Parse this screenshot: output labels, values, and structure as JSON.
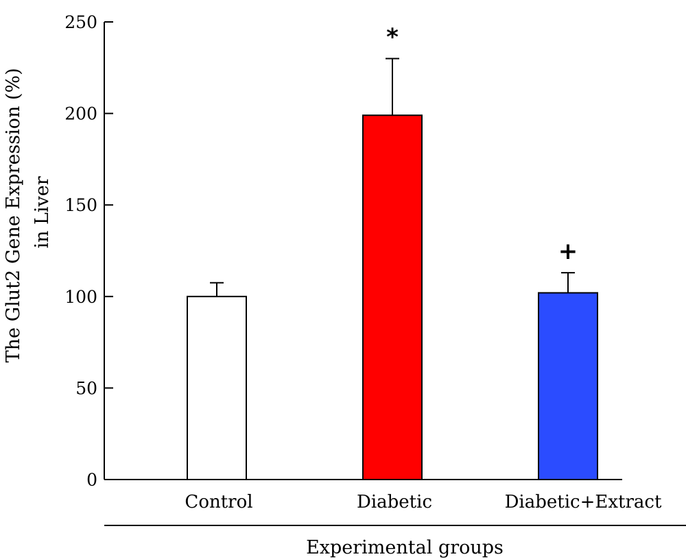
{
  "chart_data": {
    "type": "bar",
    "categories": [
      "Control",
      "Diabetic",
      "Diabetic+Extract"
    ],
    "values": [
      100,
      199,
      102
    ],
    "errors": [
      7.5,
      31,
      11
    ],
    "annotations": [
      "",
      "*",
      "+"
    ],
    "colors": [
      "#ffffff",
      "#ff0000",
      "#2b4cff"
    ],
    "ylabel_lines": [
      "The Glut2 Gene Expression (%)",
      "in Liver"
    ],
    "xlabel": "Experimental groups",
    "ylim": [
      0,
      250
    ],
    "yticks": [
      0,
      50,
      100,
      150,
      200,
      250
    ],
    "grid": false,
    "legend": "none"
  }
}
